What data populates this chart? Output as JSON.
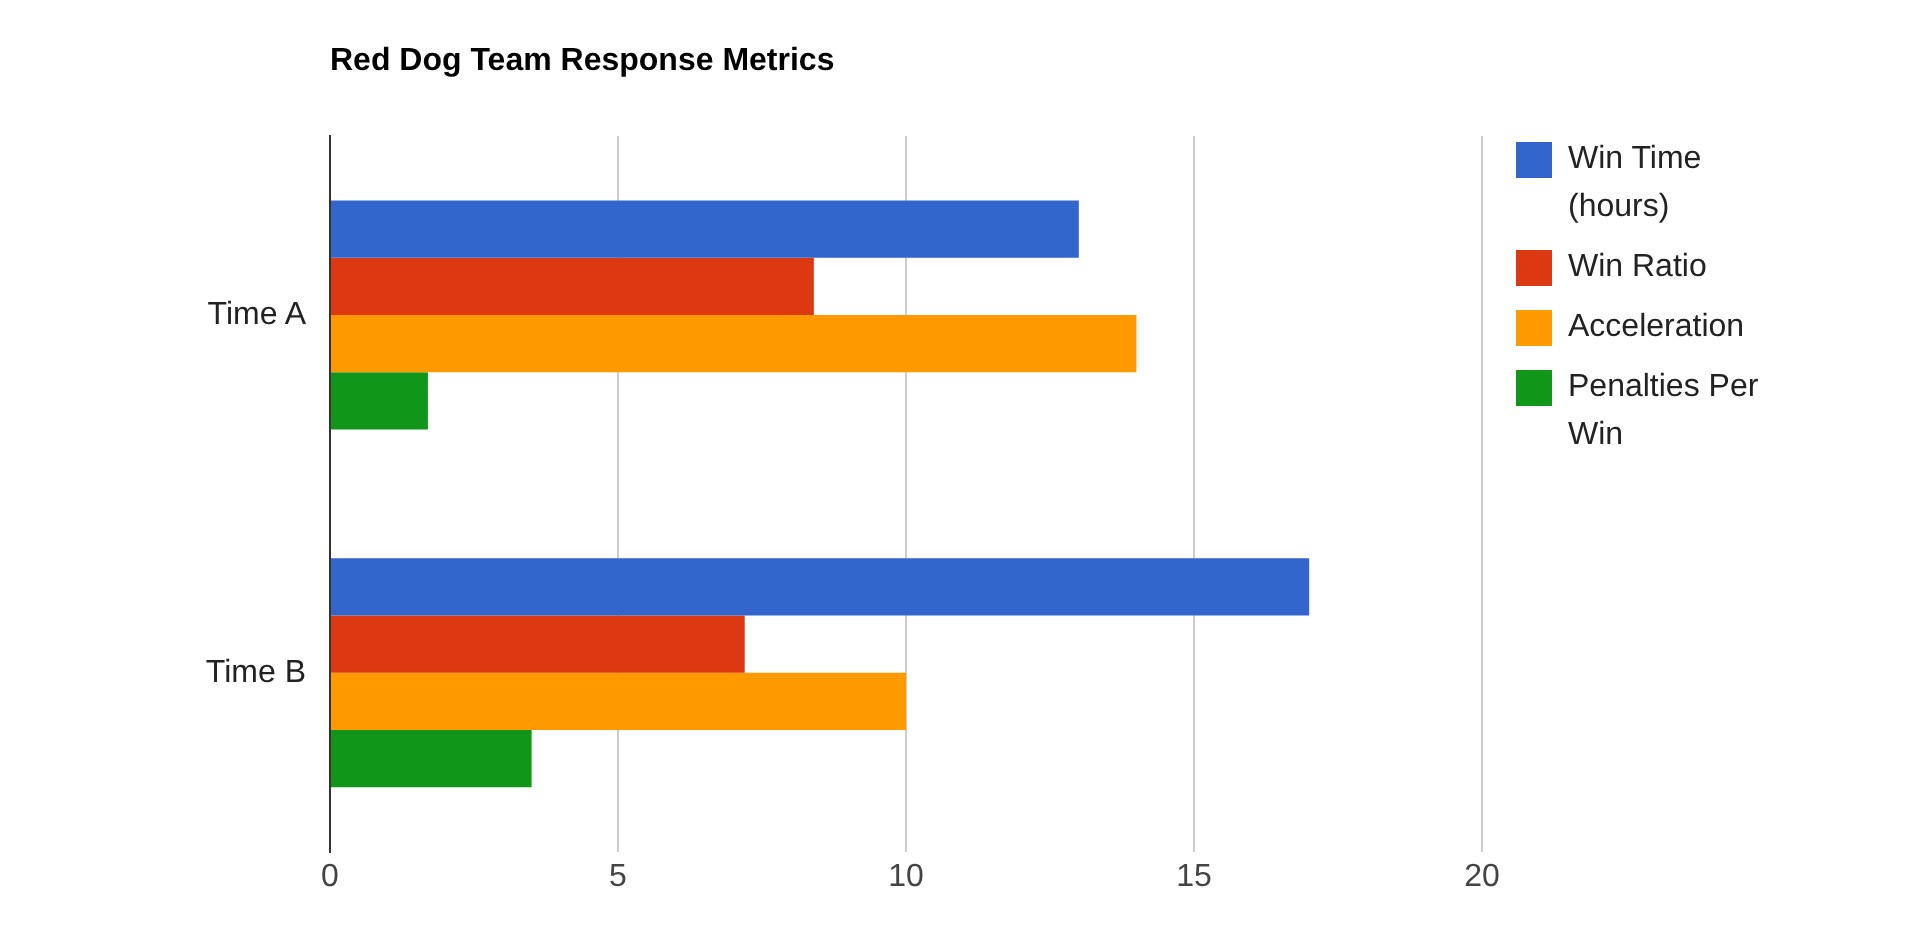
{
  "chart_data": {
    "type": "bar",
    "orientation": "horizontal",
    "title": "Red Dog Team Response Metrics",
    "categories": [
      "Time A",
      "Time B"
    ],
    "series": [
      {
        "name": "Win Time (hours)",
        "color": "#3366cc",
        "values": [
          13,
          17
        ]
      },
      {
        "name": "Win Ratio",
        "color": "#dc3912",
        "values": [
          8.4,
          7.2
        ]
      },
      {
        "name": "Acceleration",
        "color": "#ff9900",
        "values": [
          14,
          10
        ]
      },
      {
        "name": "Penalties Per Win",
        "color": "#109618",
        "values": [
          1.7,
          3.5
        ]
      }
    ],
    "xlim": [
      0,
      20
    ],
    "xticks": [
      0,
      5,
      10,
      15,
      20
    ],
    "grid": "x",
    "legend": "right"
  }
}
